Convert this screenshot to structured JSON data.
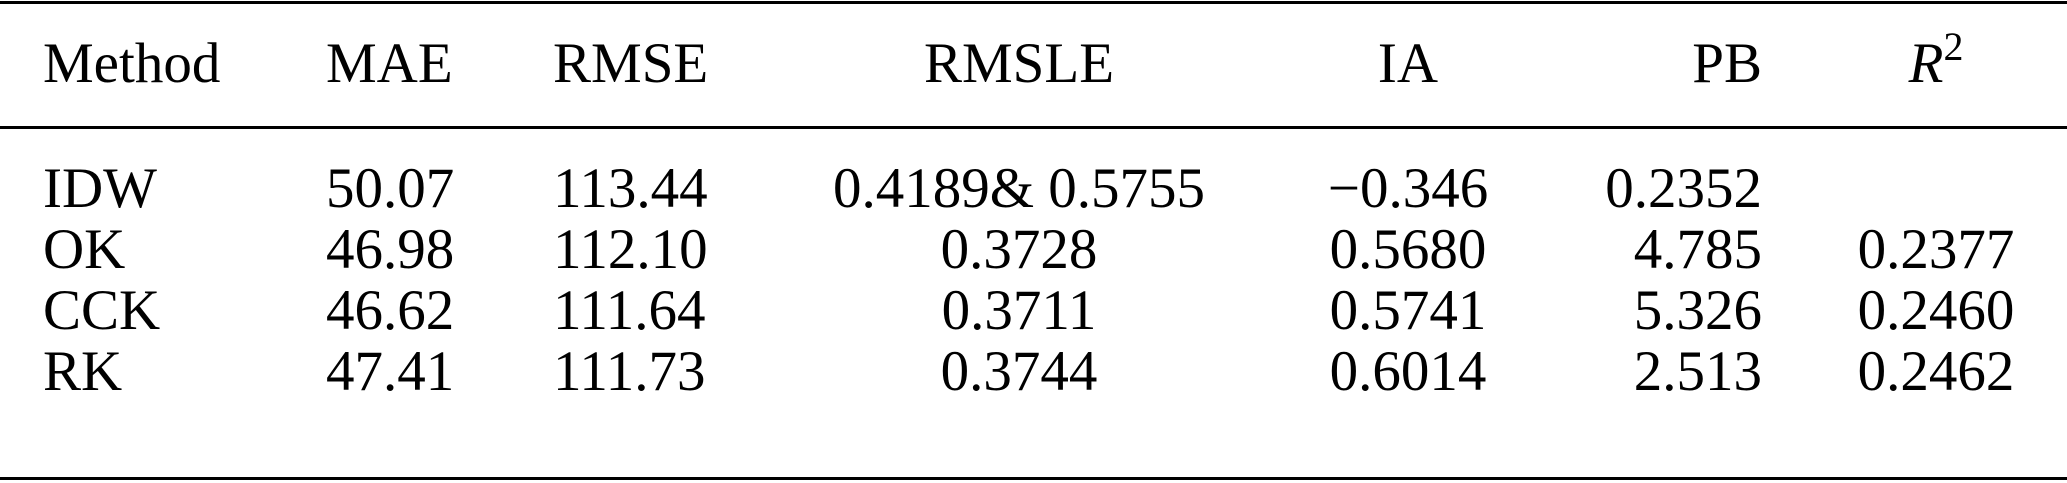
{
  "table": {
    "headers": [
      "Method",
      "MAE",
      "RMSE",
      "RMSLE",
      "IA",
      "PB",
      "R"
    ],
    "r2_superscript": "2",
    "rows": [
      [
        "IDW",
        "50.07",
        "113.44",
        "0.4189& 0.5755",
        "−0.346",
        "0.2352",
        ""
      ],
      [
        "OK",
        "46.98",
        "112.10",
        "0.3728",
        "0.5680",
        "4.785",
        "0.2377"
      ],
      [
        "CCK",
        "46.62",
        "111.64",
        "0.3711",
        "0.5741",
        "5.326",
        "0.2460"
      ],
      [
        "RK",
        "47.41",
        "111.73",
        "0.3744",
        "0.6014",
        "2.513",
        "0.2462"
      ]
    ]
  }
}
